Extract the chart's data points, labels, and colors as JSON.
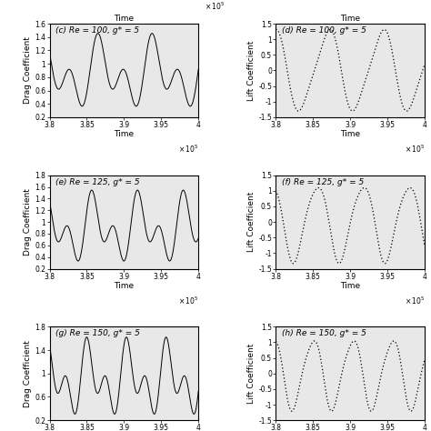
{
  "subplots": [
    {
      "label": "(c) Re = 100, g* = 5",
      "type": "drag",
      "ylabel": "Drag Coefficient",
      "xlim": [
        3.8,
        4.0
      ],
      "ylim": [
        0.2,
        1.6
      ],
      "yticks": [
        0.2,
        0.4,
        0.6,
        0.8,
        1.0,
        1.2,
        1.4,
        1.6
      ],
      "xticks": [
        3.8,
        3.85,
        3.9,
        3.95,
        4.0
      ],
      "mean": 0.85,
      "amp_fast": 0.33,
      "amp_slow": 0.3,
      "freq_fast": 5.5,
      "freq_slow": 2.75,
      "phase_fast": 1.5,
      "phase_slow": 0.3
    },
    {
      "label": "(d) Re = 100, g* = 5",
      "type": "lift",
      "ylabel": "Lift Coefficient",
      "xlim": [
        3.8,
        4.0
      ],
      "ylim": [
        -1.5,
        1.5
      ],
      "yticks": [
        -1.5,
        -1.0,
        -0.5,
        0.0,
        0.5,
        1.0,
        1.5
      ],
      "xticks": [
        3.8,
        3.85,
        3.9,
        3.95,
        4.0
      ],
      "amp": 1.25,
      "freq": 2.75,
      "phase": 1.8,
      "amp2": 0.2,
      "freq2": 5.5,
      "phase2": 0.5
    },
    {
      "label": "(e) Re = 125, g* = 5",
      "type": "drag",
      "ylabel": "Drag Coefficient",
      "xlim": [
        3.8,
        4.0
      ],
      "ylim": [
        0.2,
        1.8
      ],
      "yticks": [
        0.2,
        0.4,
        0.6,
        0.8,
        1.0,
        1.2,
        1.4,
        1.6,
        1.8
      ],
      "xticks": [
        3.8,
        3.85,
        3.9,
        3.95,
        4.0
      ],
      "mean": 0.88,
      "amp_fast": 0.35,
      "amp_slow": 0.35,
      "freq_fast": 6.5,
      "freq_slow": 3.25,
      "phase_fast": 1.2,
      "phase_slow": 0.1
    },
    {
      "label": "(f) Re = 125, g* = 5",
      "type": "lift",
      "ylabel": "Lift Coefficient",
      "xlim": [
        3.8,
        4.0
      ],
      "ylim": [
        -1.5,
        1.5
      ],
      "yticks": [
        -1.5,
        -1.0,
        -0.5,
        0.0,
        0.5,
        1.0,
        1.5
      ],
      "xticks": [
        3.8,
        3.85,
        3.9,
        3.95,
        4.0
      ],
      "amp": 1.2,
      "freq": 3.25,
      "phase": 2.2,
      "amp2": 0.15,
      "freq2": 6.5,
      "phase2": 0.3
    },
    {
      "label": "(g) Re = 150, g* = 5",
      "type": "drag",
      "ylabel": "Drag Coefficient",
      "xlim": [
        3.8,
        4.0
      ],
      "ylim": [
        0.2,
        1.8
      ],
      "yticks": [
        0.2,
        0.6,
        1.0,
        1.4,
        1.8
      ],
      "xticks": [
        3.8,
        3.85,
        3.9,
        3.95,
        4.0
      ],
      "mean": 0.9,
      "amp_fast": 0.38,
      "amp_slow": 0.38,
      "freq_fast": 7.5,
      "freq_slow": 3.75,
      "phase_fast": 1.0,
      "phase_slow": 0.0
    },
    {
      "label": "(h) Re = 150, g* = 5",
      "type": "lift",
      "ylabel": "Lift Coefficient",
      "xlim": [
        3.8,
        4.0
      ],
      "ylim": [
        -1.5,
        1.5
      ],
      "yticks": [
        -1.5,
        -1.0,
        -0.5,
        0.0,
        0.5,
        1.0,
        1.5
      ],
      "xticks": [
        3.8,
        3.85,
        3.9,
        3.95,
        4.0
      ],
      "amp": 1.1,
      "freq": 3.75,
      "phase": 2.0,
      "amp2": 0.15,
      "freq2": 7.5,
      "phase2": 0.2
    }
  ],
  "fontsize": 6.5,
  "tick_fontsize": 5.5,
  "bg_color": "#e8e8e8"
}
